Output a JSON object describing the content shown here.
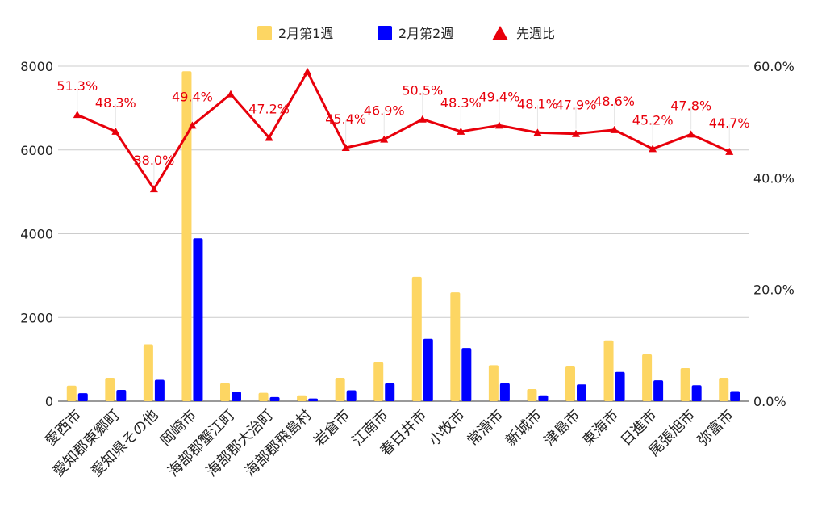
{
  "chart_data": {
    "type": "bar",
    "categories": [
      "愛西市",
      "愛知郡東郷町",
      "愛知県その他",
      "岡崎市",
      "海部郡蟹江町",
      "海部郡大治町",
      "海部郡飛島村",
      "岩倉市",
      "江南市",
      "春日井市",
      "小牧市",
      "常滑市",
      "新城市",
      "津島市",
      "東海市",
      "日進市",
      "尾張旭市",
      "弥富市"
    ],
    "series": [
      {
        "name": "2月第1週",
        "type": "bar",
        "axis": "left",
        "color": "#fdd663",
        "values": [
          370,
          560,
          1360,
          7880,
          430,
          200,
          140,
          560,
          930,
          2970,
          2600,
          860,
          290,
          830,
          1450,
          1120,
          790,
          560
        ]
      },
      {
        "name": "2月第2週",
        "type": "bar",
        "axis": "left",
        "color": "#0000ff",
        "values": [
          190,
          270,
          510,
          3890,
          230,
          100,
          65,
          260,
          430,
          1490,
          1270,
          430,
          140,
          400,
          700,
          500,
          380,
          240
        ]
      },
      {
        "name": "先週比",
        "type": "line",
        "axis": "right",
        "color": "#e8000b",
        "values": [
          51.3,
          48.3,
          38.0,
          49.4,
          55.0,
          47.2,
          59.0,
          45.4,
          46.9,
          50.5,
          48.3,
          49.4,
          48.1,
          47.9,
          48.6,
          45.2,
          47.8,
          44.7
        ],
        "labels": [
          "51.3%",
          "48.3%",
          "38.0%",
          "49.4%",
          "",
          "47.2%",
          "",
          "45.4%",
          "46.9%",
          "50.5%",
          "48.3%",
          "49.4%",
          "48.1%",
          "47.9%",
          "48.6%",
          "45.2%",
          "47.8%",
          "44.7%"
        ]
      }
    ],
    "y_left": {
      "min": 0,
      "max": 8000,
      "ticks": [
        "0",
        "2000",
        "4000",
        "6000",
        "8000"
      ]
    },
    "y_right": {
      "min": 0,
      "max": 60,
      "ticks": [
        "0.0%",
        "20.0%",
        "40.0%",
        "60.0%"
      ]
    },
    "grid": true,
    "legend": "top"
  }
}
